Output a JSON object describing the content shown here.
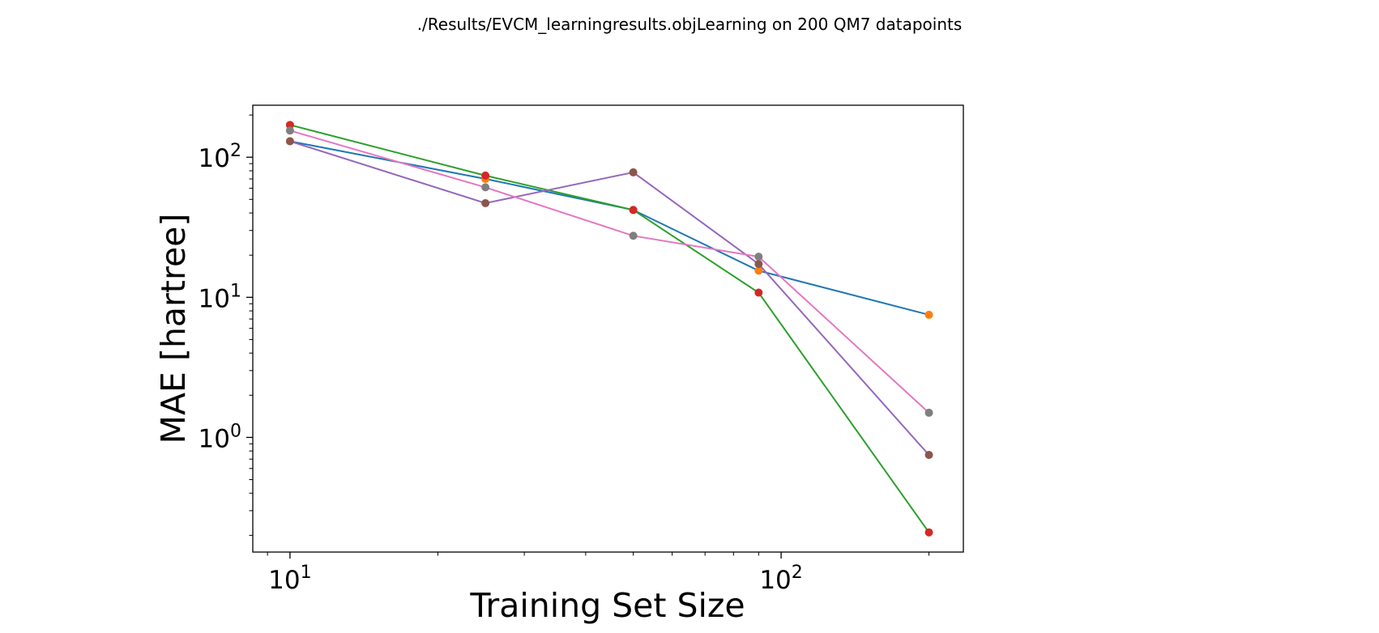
{
  "chart_data": {
    "type": "line",
    "title": "./Results/EVCM_learningresults.objLearning on 200 QM7 datapoints",
    "xlabel": "Training Set Size",
    "ylabel": "MAE [hartree]",
    "xscale": "log",
    "yscale": "log",
    "xlim": [
      8.4,
      235
    ],
    "ylim": [
      0.152,
      235
    ],
    "grid": false,
    "legend": "none",
    "x": [
      10,
      25,
      50,
      90,
      200
    ],
    "xticks": [
      {
        "base": "10",
        "exp": "1",
        "value": 10
      },
      {
        "base": "10",
        "exp": "2",
        "value": 100
      }
    ],
    "yticks": [
      {
        "base": "10",
        "exp": "0",
        "value": 1
      },
      {
        "base": "10",
        "exp": "1",
        "value": 10
      },
      {
        "base": "10",
        "exp": "2",
        "value": 100
      }
    ],
    "series": [
      {
        "line_color": "#1f77b4",
        "marker_color": "#ff7f0e",
        "values": [
          130,
          70,
          42,
          15.5,
          7.5
        ]
      },
      {
        "line_color": "#2ca02c",
        "marker_color": "#d62728",
        "values": [
          170,
          74,
          42,
          10.8,
          0.21
        ]
      },
      {
        "line_color": "#9467bd",
        "marker_color": "#8c564b",
        "values": [
          130,
          47,
          78,
          17.3,
          0.75
        ]
      },
      {
        "line_color": "#e377c2",
        "marker_color": "#7f7f7f",
        "values": [
          155,
          61,
          27.5,
          19.5,
          1.5
        ]
      }
    ]
  }
}
